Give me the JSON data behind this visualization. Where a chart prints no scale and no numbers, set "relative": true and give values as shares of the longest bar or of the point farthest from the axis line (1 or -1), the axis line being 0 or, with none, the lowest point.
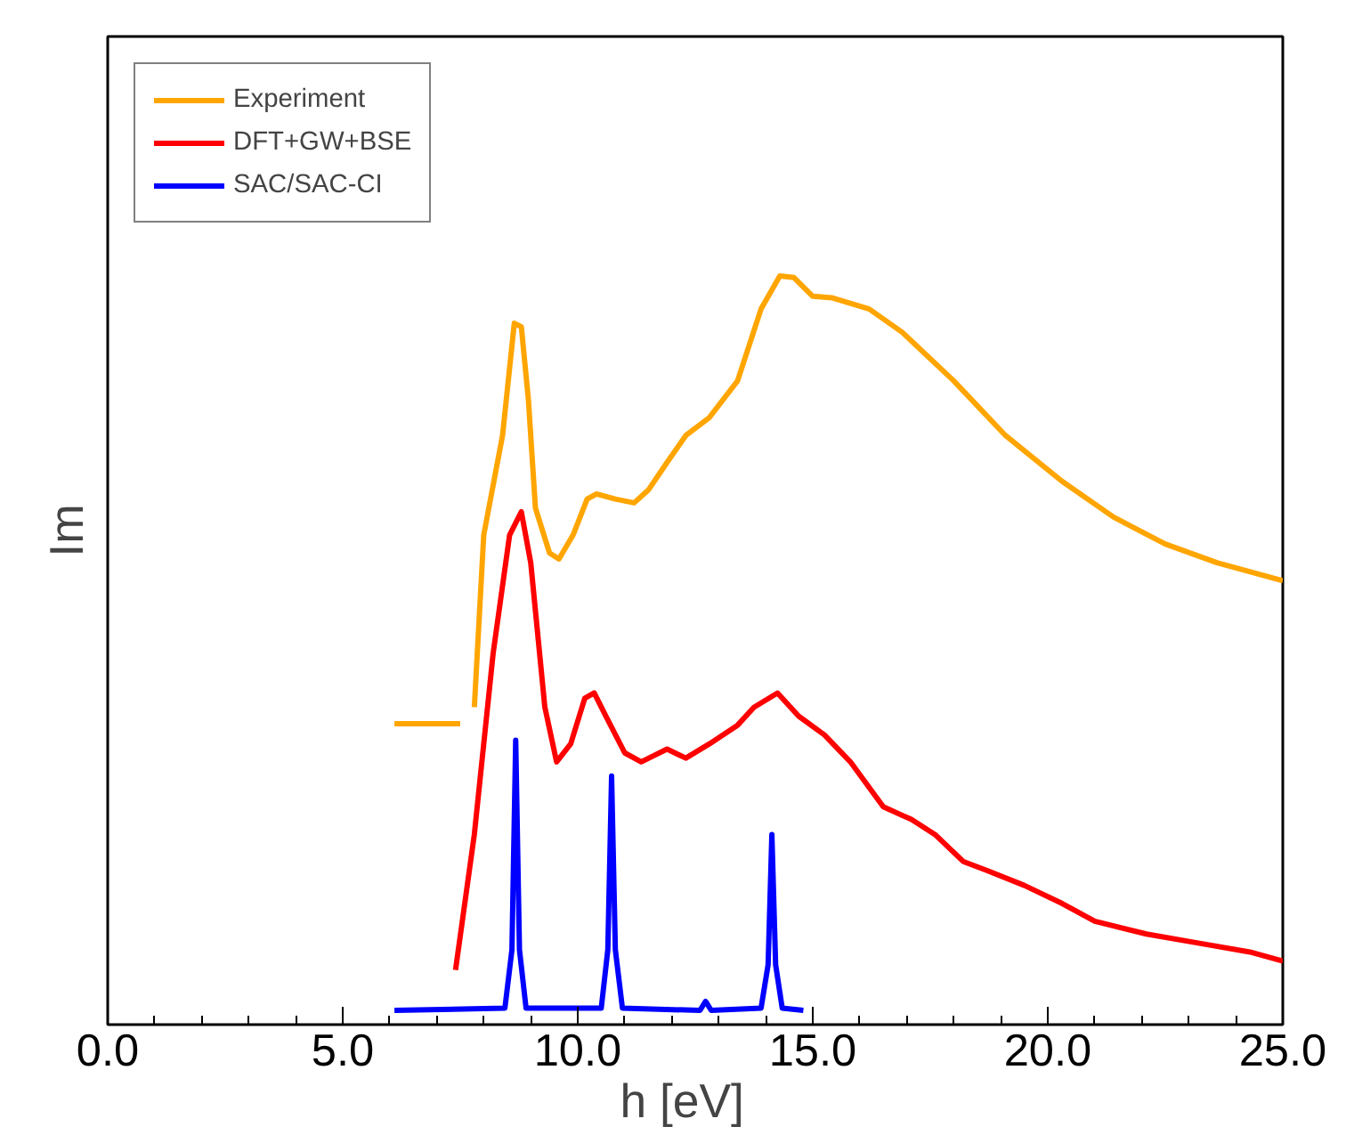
{
  "chart_data": {
    "type": "line",
    "relative": true,
    "xlabel": "h   [eV]",
    "ylabel": "Im",
    "xlim": [
      0,
      25
    ],
    "xticks": [
      {
        "value": 0,
        "label": "0.0"
      },
      {
        "value": 5,
        "label": "5.0"
      },
      {
        "value": 10,
        "label": "10.0"
      },
      {
        "value": 15,
        "label": "15.0"
      },
      {
        "value": 20,
        "label": "20.0"
      },
      {
        "value": 25,
        "label": "25.0"
      }
    ],
    "grid": false,
    "legend": "top left",
    "marker": "none",
    "line_style": "solid",
    "series": [
      {
        "name": "Experiment",
        "color": "#ffa500",
        "x": [
          6.1,
          7.5,
          7.65,
          7.8,
          8.0,
          8.4,
          8.65,
          8.8,
          8.95,
          9.1,
          9.4,
          9.6,
          9.9,
          10.2,
          10.4,
          10.8,
          11.2,
          11.5,
          11.9,
          12.3,
          12.8,
          13.4,
          13.9,
          14.3,
          14.6,
          15.0,
          15.4,
          16.2,
          16.9,
          18.0,
          19.1,
          20.3,
          21.4,
          22.5,
          23.6,
          25.0
        ],
        "values": [
          0.402,
          0.402,
          null,
          0.424,
          0.654,
          0.787,
          0.937,
          0.932,
          0.835,
          0.69,
          0.63,
          0.622,
          0.654,
          0.702,
          0.709,
          0.702,
          0.697,
          0.714,
          0.751,
          0.787,
          0.811,
          0.86,
          0.956,
          1.0,
          0.998,
          0.973,
          0.971,
          0.956,
          0.925,
          0.86,
          0.787,
          0.726,
          0.678,
          0.642,
          0.617,
          0.593
        ]
      },
      {
        "name": "DFT+GW+BSE",
        "color": "#ff0000",
        "x": [
          7.4,
          7.8,
          8.2,
          8.55,
          8.8,
          9.0,
          9.3,
          9.55,
          9.85,
          10.15,
          10.35,
          10.6,
          11.0,
          11.35,
          11.9,
          12.3,
          12.8,
          13.4,
          13.75,
          14.25,
          14.7,
          15.25,
          15.8,
          16.5,
          17.1,
          17.6,
          18.2,
          18.7,
          19.5,
          20.3,
          21.0,
          22.1,
          23.2,
          24.3,
          25.0
        ],
        "values": [
          0.073,
          0.254,
          0.496,
          0.654,
          0.685,
          0.617,
          0.424,
          0.351,
          0.375,
          0.436,
          0.443,
          0.412,
          0.363,
          0.351,
          0.368,
          0.356,
          0.375,
          0.4,
          0.424,
          0.443,
          0.412,
          0.387,
          0.351,
          0.291,
          0.274,
          0.254,
          0.218,
          0.206,
          0.186,
          0.162,
          0.138,
          0.121,
          0.109,
          0.097,
          0.085
        ]
      },
      {
        "name": "SAC/SAC-CI",
        "color": "#0000ff",
        "x": [
          6.1,
          8.45,
          8.6,
          8.68,
          8.76,
          8.9,
          10.5,
          10.64,
          10.72,
          10.8,
          10.95,
          12.6,
          12.72,
          12.84,
          13.9,
          14.05,
          14.13,
          14.21,
          14.35,
          14.8
        ],
        "values": [
          0.019,
          0.022,
          0.1,
          0.38,
          0.1,
          0.022,
          0.022,
          0.1,
          0.332,
          0.1,
          0.022,
          0.019,
          0.031,
          0.019,
          0.022,
          0.08,
          0.254,
          0.08,
          0.022,
          0.019
        ]
      }
    ]
  }
}
